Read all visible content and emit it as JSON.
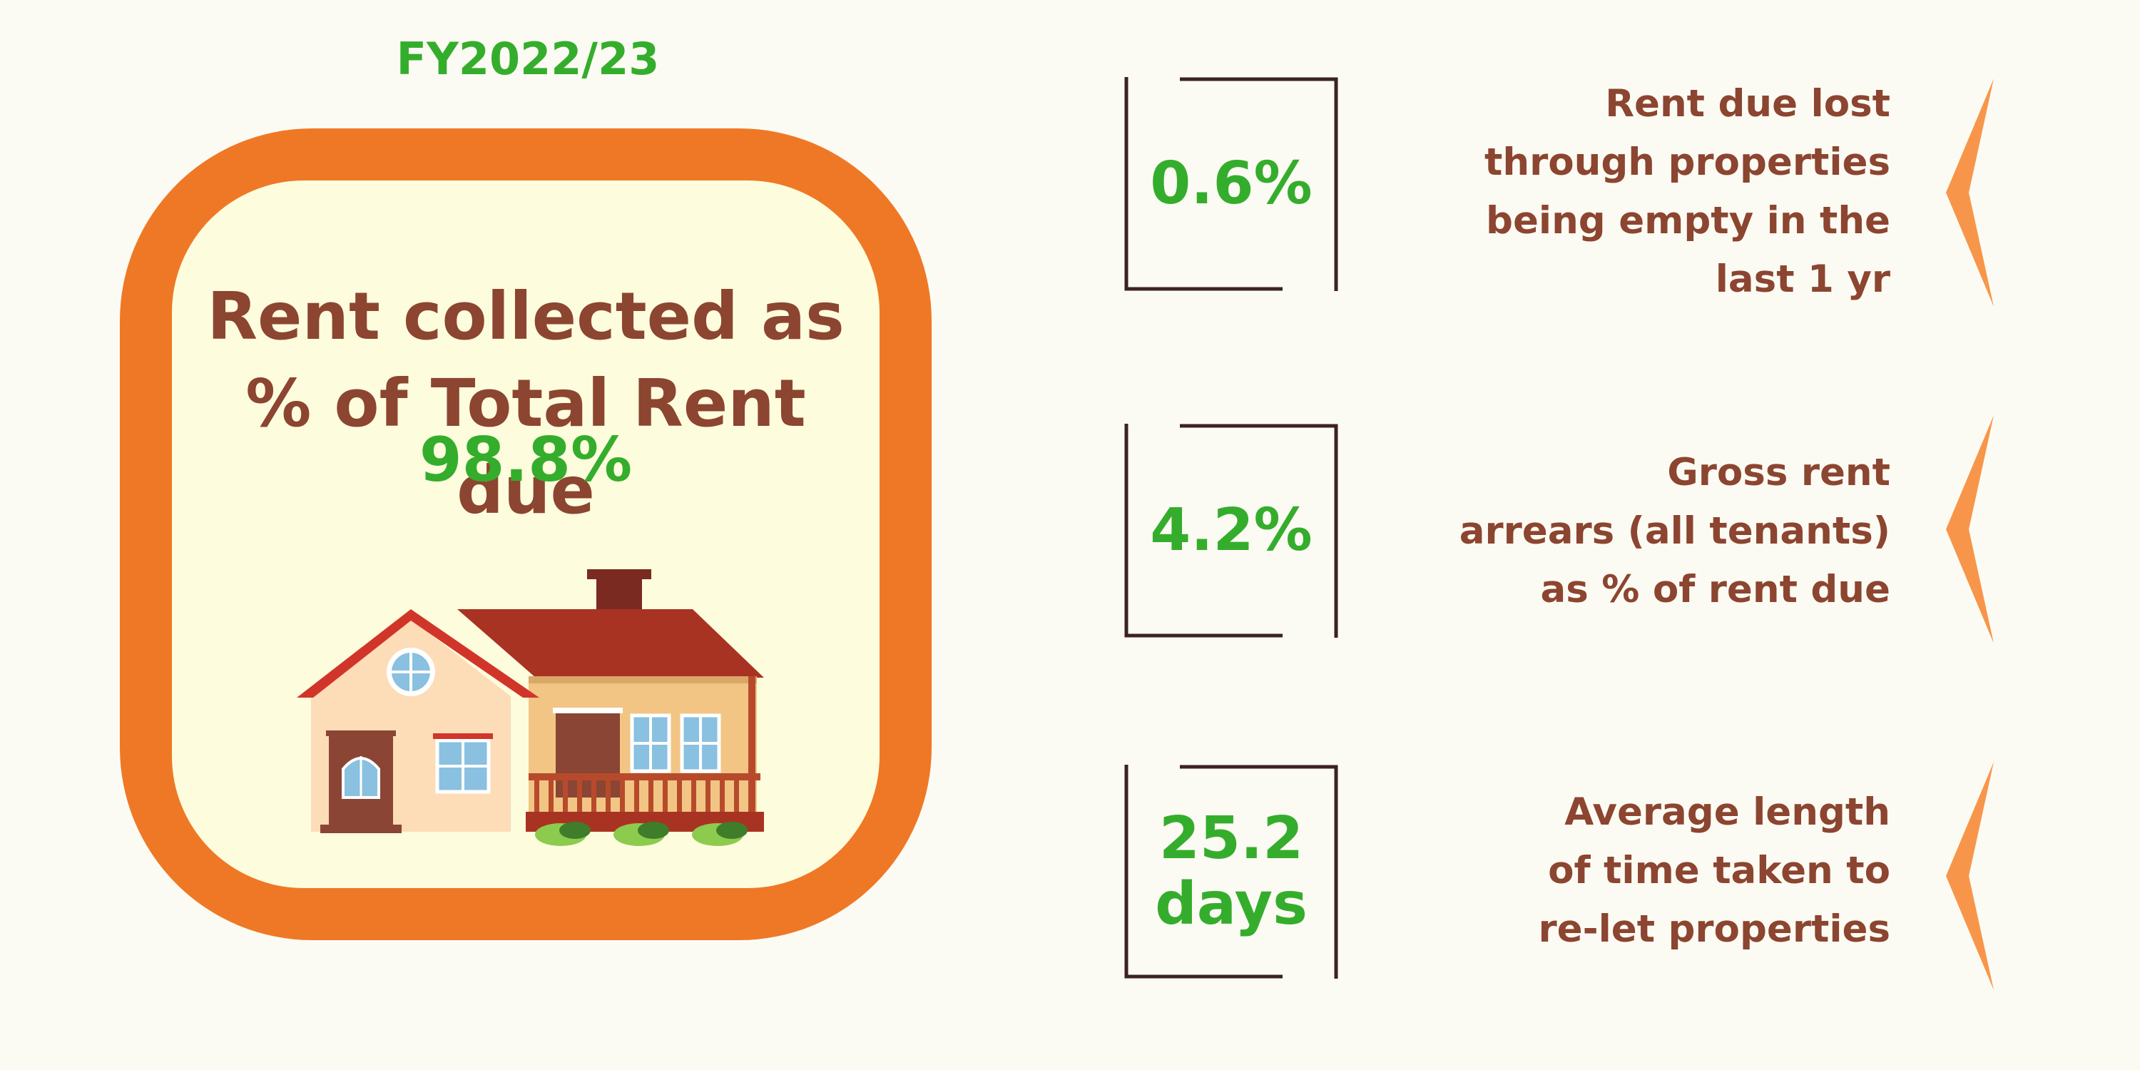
{
  "header": {
    "fiscal_year": "FY2022/23"
  },
  "main_panel": {
    "title_line1": "Rent collected as",
    "title_line2": "% of Total Rent due",
    "value": "98.8%",
    "illustration": "house-illustration"
  },
  "stats": [
    {
      "value": "0.6%",
      "label": [
        "Rent due lost",
        "through properties",
        "being empty in the",
        "last 1 yr"
      ]
    },
    {
      "value": "4.2%",
      "label": [
        "Gross rent",
        "arrears (all tenants)",
        "as % of rent due"
      ]
    },
    {
      "value_line1": "25.2",
      "value_line2": "days",
      "label": [
        "Average length",
        "of time taken to",
        "re-let properties"
      ]
    }
  ],
  "colors": {
    "background": "#fcfbf3",
    "accent_orange": "#ef7826",
    "value_green": "#35ad2c",
    "text_brown": "#8c4530",
    "chevron_orange": "#f7964a"
  }
}
